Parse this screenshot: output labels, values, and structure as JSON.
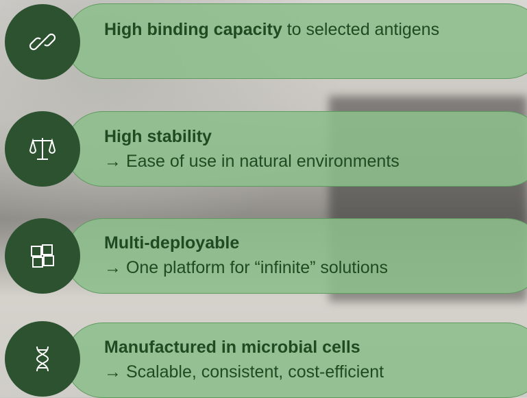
{
  "items": [
    {
      "title": "High binding capacity",
      "text": "to selected antigens"
    },
    {
      "title": "High stability",
      "text": "→ Ease of use in natural environments"
    },
    {
      "title": "Multi-deployable",
      "text": "→ One platform for “infinite” solutions"
    },
    {
      "title": "Manufactured in microbial cells",
      "text": "→ Scalable, consistent, cost-efficient"
    }
  ]
}
